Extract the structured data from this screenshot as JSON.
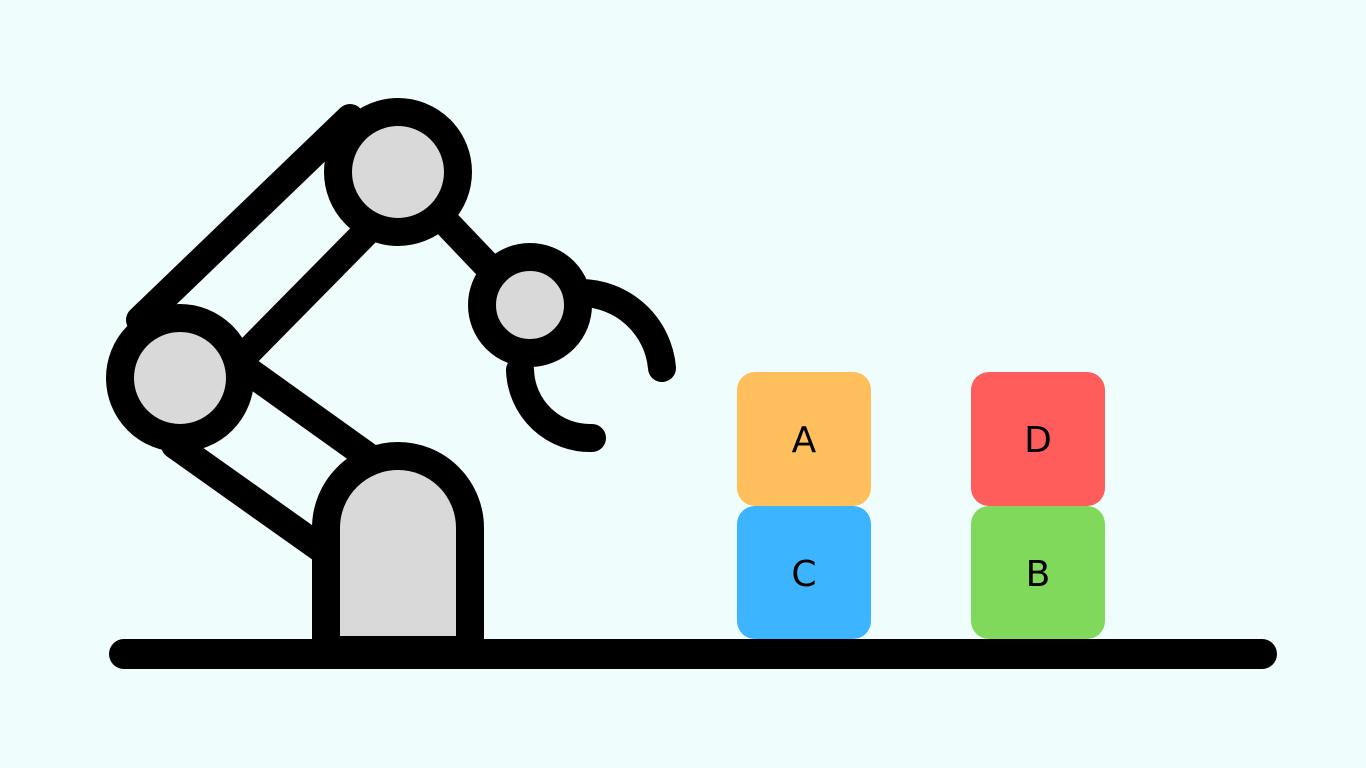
{
  "colors": {
    "background": "#effdfd",
    "outline": "#000000",
    "joint_fill": "#d9d9d9"
  },
  "robot": {
    "name": "robotic-arm",
    "parts": [
      "base",
      "shoulder-joint",
      "elbow-joint",
      "wrist-joint",
      "gripper"
    ]
  },
  "blocks": [
    {
      "label": "A",
      "color": "#ffbf5c",
      "stack": "left",
      "level": "top"
    },
    {
      "label": "C",
      "color": "#3db4ff",
      "stack": "left",
      "level": "bottom"
    },
    {
      "label": "D",
      "color": "#ff5c5c",
      "stack": "right",
      "level": "top"
    },
    {
      "label": "B",
      "color": "#80d95a",
      "stack": "right",
      "level": "bottom"
    }
  ]
}
